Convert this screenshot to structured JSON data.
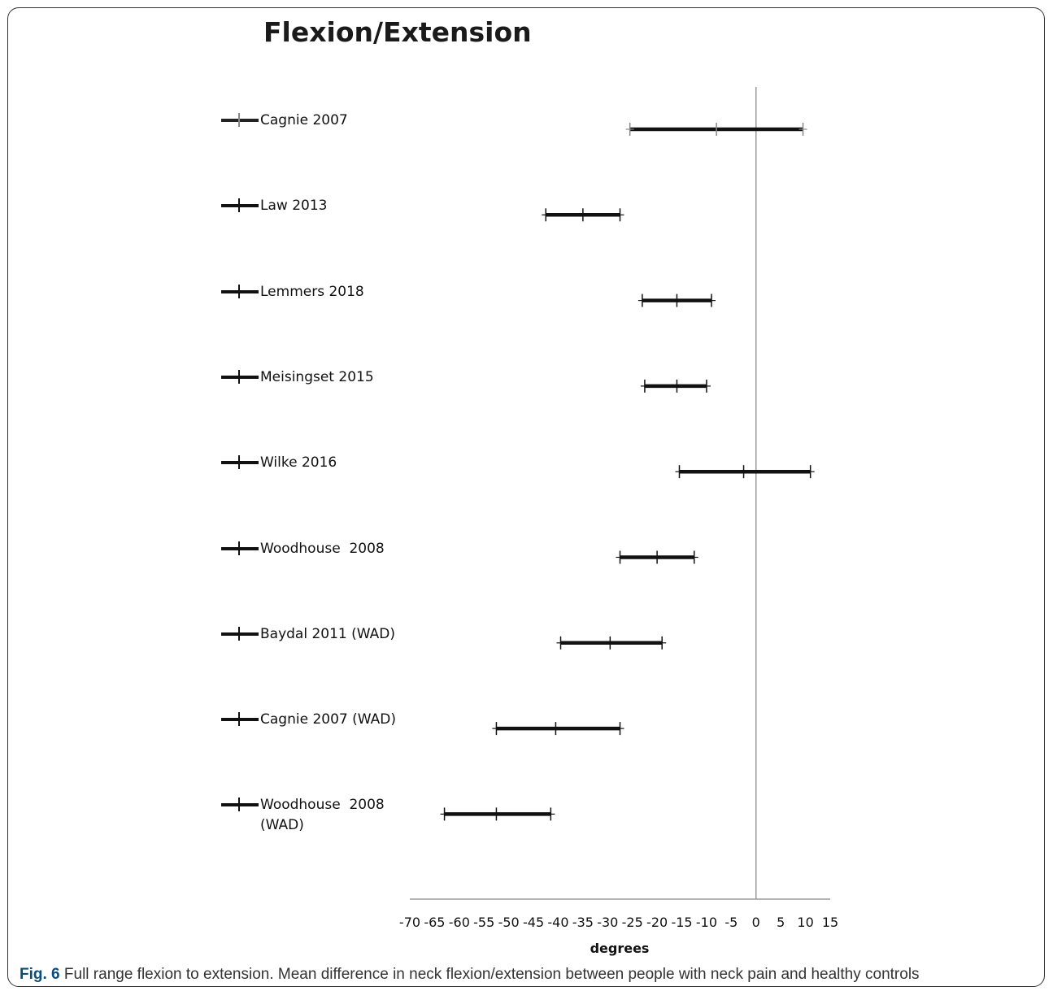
{
  "chart_data": {
    "type": "forest",
    "title": "Flexion/Extension",
    "xlabel": "degrees",
    "xlim": [
      -70,
      15
    ],
    "xticks": [
      -70,
      -65,
      -60,
      -55,
      -50,
      -45,
      -40,
      -35,
      -30,
      -25,
      -20,
      -15,
      -10,
      -5,
      0,
      5,
      10,
      15
    ],
    "reference_line": 0,
    "series": [
      {
        "name": "Cagnie 2007",
        "mean": -8,
        "ci_low": -25.5,
        "ci_high": 9.5
      },
      {
        "name": "Law 2013",
        "mean": -35,
        "ci_low": -42.5,
        "ci_high": -27.5
      },
      {
        "name": "Lemmers 2018",
        "mean": -16,
        "ci_low": -23,
        "ci_high": -9
      },
      {
        "name": "Meisingset 2015",
        "mean": -16,
        "ci_low": -22.5,
        "ci_high": -10
      },
      {
        "name": "Wilke 2016",
        "mean": -2.5,
        "ci_low": -15.5,
        "ci_high": 11
      },
      {
        "name": "Woodhouse  2008",
        "mean": -20,
        "ci_low": -27.5,
        "ci_high": -12.5
      },
      {
        "name": "Baydal 2011 (WAD)",
        "mean": -29.5,
        "ci_low": -39.5,
        "ci_high": -19
      },
      {
        "name": "Cagnie 2007 (WAD)",
        "mean": -40.5,
        "ci_low": -52.5,
        "ci_high": -27.5
      },
      {
        "name": "Woodhouse  2008\n(WAD)",
        "mean": -52.5,
        "ci_low": -63,
        "ci_high": -41.5
      }
    ]
  },
  "caption": {
    "fig_label": "Fig. 6",
    "text": " Full range flexion to extension. Mean difference in neck flexion/extension between people with neck pain and healthy controls"
  }
}
